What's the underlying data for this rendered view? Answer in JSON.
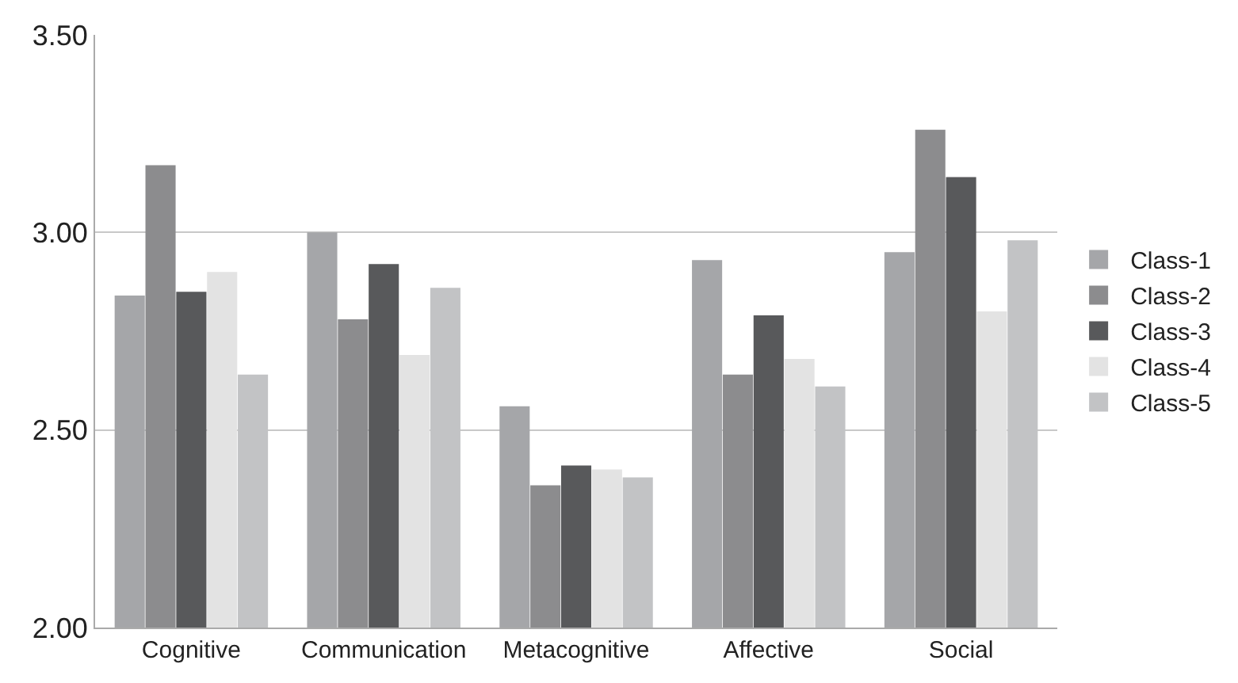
{
  "chart_data": {
    "type": "bar",
    "categories": [
      "Cognitive",
      "Communication",
      "Metacognitive",
      "Affective",
      "Social"
    ],
    "series": [
      {
        "name": "Class-1",
        "color": "#a5a6a9",
        "values": [
          2.84,
          3.0,
          2.56,
          2.93,
          2.95
        ]
      },
      {
        "name": "Class-2",
        "color": "#8c8c8e",
        "values": [
          3.17,
          2.78,
          2.36,
          2.64,
          3.26
        ]
      },
      {
        "name": "Class-3",
        "color": "#58595b",
        "values": [
          2.85,
          2.92,
          2.41,
          2.79,
          3.14
        ]
      },
      {
        "name": "Class-4",
        "color": "#e3e3e3",
        "values": [
          2.9,
          2.69,
          2.4,
          2.68,
          2.8
        ]
      },
      {
        "name": "Class-5",
        "color": "#c2c3c5",
        "values": [
          2.64,
          2.86,
          2.38,
          2.61,
          2.98
        ]
      }
    ],
    "ylim": [
      2.0,
      3.5
    ],
    "yticks": [
      {
        "value": 2.0,
        "label": "2.00"
      },
      {
        "value": 2.5,
        "label": "2.50"
      },
      {
        "value": 3.0,
        "label": "3.00"
      },
      {
        "value": 3.5,
        "label": "3.50"
      }
    ],
    "grid": "y",
    "legend": "right"
  }
}
